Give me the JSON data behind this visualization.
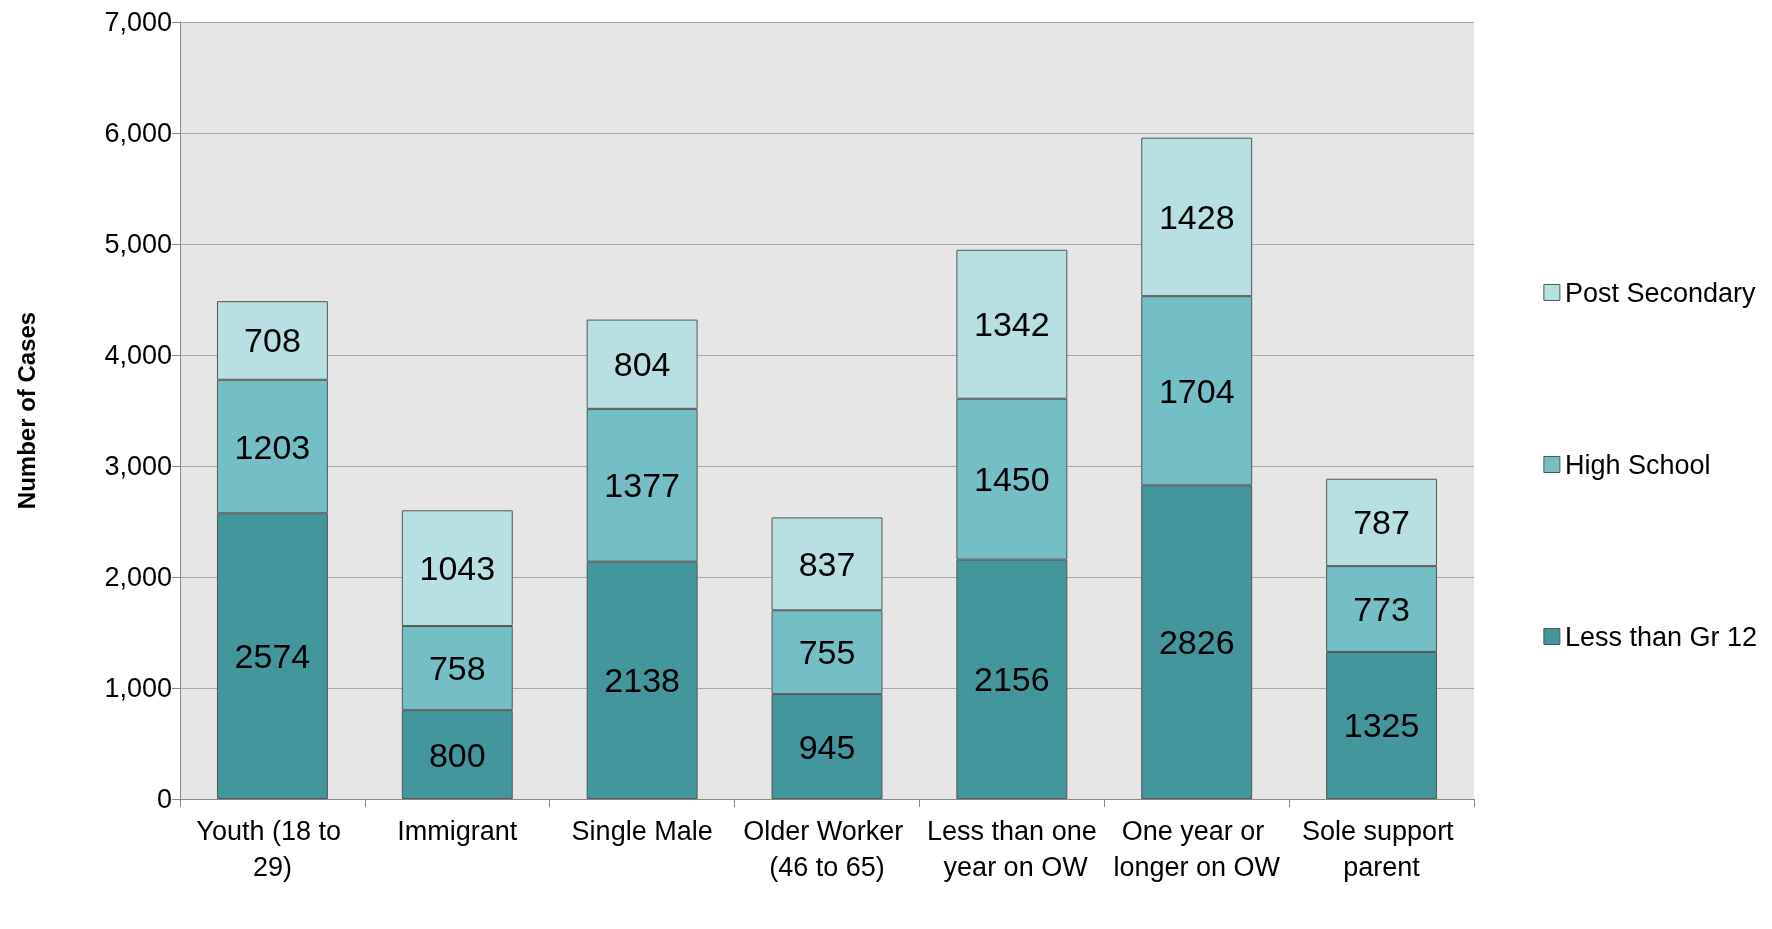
{
  "chart_data": {
    "type": "bar",
    "stacked": true,
    "ylabel": "Number of Cases",
    "categories": [
      "Youth (18 to 29)",
      "Immigrant",
      "Single Male",
      "Older Worker (46 to 65)",
      "Less than one year on OW",
      "One year or longer on OW",
      "Sole support parent"
    ],
    "series": [
      {
        "name": "Less than Gr 12",
        "color": "#42969c",
        "values": [
          2574,
          800,
          2138,
          945,
          2156,
          2826,
          1325
        ]
      },
      {
        "name": "High School",
        "color": "#73bfc5",
        "values": [
          1203,
          758,
          1377,
          755,
          1450,
          1704,
          773
        ]
      },
      {
        "name": "Post Secondary",
        "color": "#b8dfe2",
        "values": [
          708,
          1043,
          804,
          837,
          1342,
          1428,
          787
        ]
      }
    ],
    "ylim": [
      0,
      7000
    ],
    "yticks": [
      {
        "value": 0,
        "label": "0"
      },
      {
        "value": 1000,
        "label": "1,000"
      },
      {
        "value": 2000,
        "label": "2,000"
      },
      {
        "value": 3000,
        "label": "3,000"
      },
      {
        "value": 4000,
        "label": "4,000"
      },
      {
        "value": 5000,
        "label": "5,000"
      },
      {
        "value": 6000,
        "label": "6,000"
      },
      {
        "value": 7000,
        "label": "7,000"
      }
    ],
    "grid": "y",
    "legend": "right",
    "data_labels": true
  }
}
